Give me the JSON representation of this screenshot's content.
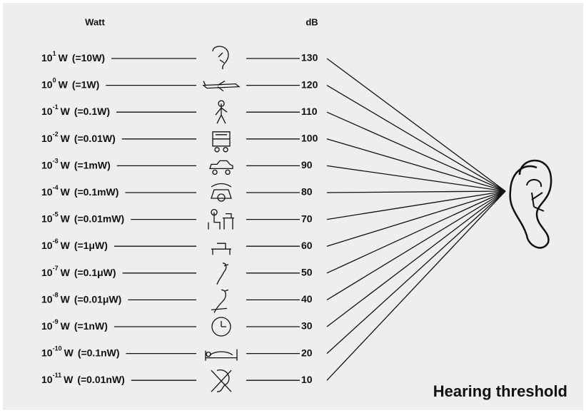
{
  "header": {
    "watt": "Watt",
    "db": "dB"
  },
  "rows": [
    {
      "base": "10",
      "exp": "1",
      "unit": "W",
      "equiv": "(=10W)",
      "db": 130
    },
    {
      "base": "10",
      "exp": "0",
      "unit": "W",
      "equiv": "(=1W)",
      "db": 120
    },
    {
      "base": "10",
      "exp": "-1",
      "unit": "W",
      "equiv": "(=0.1W)",
      "db": 110
    },
    {
      "base": "10",
      "exp": "-2",
      "unit": "W",
      "equiv": "(=0.01W)",
      "db": 100
    },
    {
      "base": "10",
      "exp": "-3",
      "unit": "W",
      "equiv": "(=1mW)",
      "db": 90
    },
    {
      "base": "10",
      "exp": "-4",
      "unit": "W",
      "equiv": "(=0.1mW)",
      "db": 80
    },
    {
      "base": "10",
      "exp": "-5",
      "unit": "W",
      "equiv": "(=0.01mW)",
      "db": 70
    },
    {
      "base": "10",
      "exp": "-6",
      "unit": "W",
      "equiv": "(=1μW)",
      "db": 60
    },
    {
      "base": "10",
      "exp": "-7",
      "unit": "W",
      "equiv": "(=0.1μW)",
      "db": 50
    },
    {
      "base": "10",
      "exp": "-8",
      "unit": "W",
      "equiv": "(=0.01μW)",
      "db": 40
    },
    {
      "base": "10",
      "exp": "-9",
      "unit": "W",
      "equiv": "(=1nW)",
      "db": 30
    },
    {
      "base": "10",
      "exp": "-10",
      "unit": "W",
      "equiv": "(=0.1nW)",
      "db": 20
    },
    {
      "base": "10",
      "exp": "-11",
      "unit": "W",
      "equiv": "(=0.01nW)",
      "db": 10
    }
  ],
  "footer": "Hearing threshold"
}
